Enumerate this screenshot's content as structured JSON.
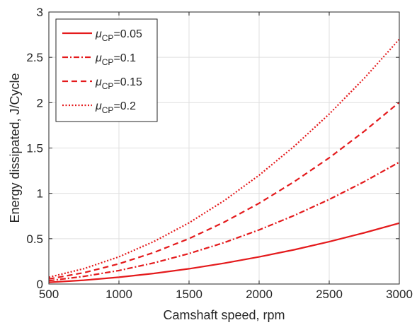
{
  "chart_data": {
    "type": "line",
    "xlabel": "Camshaft speed, rpm",
    "ylabel": "Energy dissipated, J/Cycle",
    "xlim": [
      500,
      3000
    ],
    "ylim": [
      0,
      3
    ],
    "xticks": [
      500,
      1000,
      1500,
      2000,
      2500,
      3000
    ],
    "yticks": [
      0,
      0.5,
      1,
      1.5,
      2,
      2.5,
      3
    ],
    "xtick_labels": [
      "500",
      "1000",
      "1500",
      "2000",
      "2500",
      "3000"
    ],
    "ytick_labels": [
      "0",
      "0.5",
      "1",
      "1.5",
      "2",
      "2.5",
      "3"
    ],
    "grid": true,
    "legend_position": "top-left",
    "color": "#e41a1c",
    "x": [
      500,
      750,
      1000,
      1250,
      1500,
      1750,
      2000,
      2250,
      2500,
      2750,
      3000
    ],
    "series": [
      {
        "legend_symbol": "μ",
        "legend_sub": "CP",
        "legend_value": "=0.05",
        "line_style": "solid",
        "values": [
          0.019,
          0.042,
          0.075,
          0.117,
          0.168,
          0.229,
          0.299,
          0.378,
          0.467,
          0.565,
          0.672
        ]
      },
      {
        "legend_symbol": "μ",
        "legend_sub": "CP",
        "legend_value": "=0.1",
        "line_style": "dashdot",
        "values": [
          0.037,
          0.084,
          0.149,
          0.233,
          0.336,
          0.457,
          0.597,
          0.756,
          0.933,
          1.129,
          1.344
        ]
      },
      {
        "legend_symbol": "μ",
        "legend_sub": "CP",
        "legend_value": "=0.15",
        "line_style": "dashed",
        "values": [
          0.056,
          0.125,
          0.223,
          0.348,
          0.501,
          0.682,
          0.891,
          1.128,
          1.392,
          1.685,
          2.005
        ]
      },
      {
        "legend_symbol": "μ",
        "legend_sub": "CP",
        "legend_value": "=0.2",
        "line_style": "dotted",
        "values": [
          0.075,
          0.169,
          0.3,
          0.469,
          0.675,
          0.919,
          1.2,
          1.519,
          1.875,
          2.269,
          2.7
        ]
      }
    ]
  }
}
